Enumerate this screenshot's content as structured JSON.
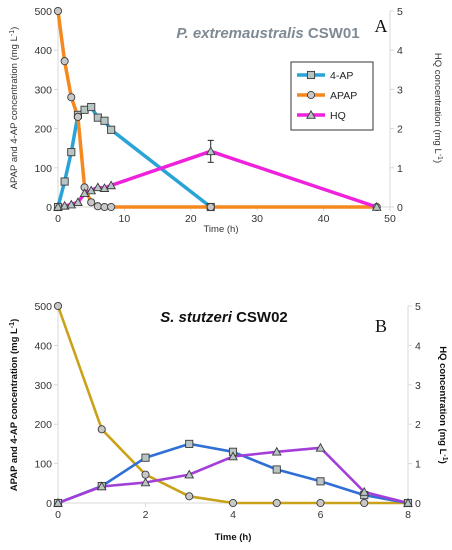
{
  "chart_data": [
    {
      "type": "line",
      "panel_label": "A",
      "title_italic": "P. extremaustralis",
      "title_rest": " CSW01",
      "xlabel": "Time (h)",
      "ylabel": "APAP and 4-AP concentration (mg L",
      "ylabel_sup": "-1",
      "ylabel_close": ")",
      "y2label": "HQ concentration (mg L",
      "y2label_sup": "-1",
      "y2label_close": ")",
      "xlim": [
        0,
        50
      ],
      "ylim": [
        0,
        500
      ],
      "y2lim": [
        0,
        5
      ],
      "xticks": [
        "0",
        "10",
        "20",
        "30",
        "40",
        "50"
      ],
      "yticks": [
        "0",
        "100",
        "200",
        "300",
        "400",
        "500"
      ],
      "y2ticks": [
        "0",
        "1",
        "2",
        "3",
        "4",
        "5"
      ],
      "legend_position": "inside-right",
      "series": [
        {
          "name": "4-AP",
          "axis": "left",
          "color": "#2aa3d6",
          "marker": "square",
          "marker_fill": "#b9c4c4",
          "points": [
            [
              0,
              0
            ],
            [
              1,
              65
            ],
            [
              2,
              140
            ],
            [
              3,
              235
            ],
            [
              4,
              248
            ],
            [
              5,
              255
            ],
            [
              6,
              228
            ],
            [
              7,
              220
            ],
            [
              8,
              197
            ],
            [
              23,
              0
            ]
          ]
        },
        {
          "name": "APAP",
          "axis": "left",
          "color": "#f5891f",
          "marker": "circle",
          "marker_fill": "#c8c8c8",
          "points": [
            [
              0,
              500
            ],
            [
              1,
              372
            ],
            [
              2,
              280
            ],
            [
              3,
              230
            ],
            [
              4,
              50
            ],
            [
              5,
              12
            ],
            [
              6,
              2
            ],
            [
              7,
              0
            ],
            [
              8,
              0
            ],
            [
              23,
              0
            ],
            [
              48,
              0
            ]
          ]
        },
        {
          "name": "HQ",
          "axis": "right",
          "color": "#ee22dd",
          "marker": "triangle",
          "marker_fill": "#b9c4c4",
          "points": [
            [
              0,
              0
            ],
            [
              1,
              0.03
            ],
            [
              2,
              0.06
            ],
            [
              3,
              0.12
            ],
            [
              4,
              0.35
            ],
            [
              5,
              0.42
            ],
            [
              6,
              0.5
            ],
            [
              7,
              0.48
            ],
            [
              8,
              0.55
            ],
            [
              23,
              1.42
            ],
            [
              48,
              0
            ]
          ],
          "error_bars": [
            {
              "x": 23,
              "y": 1.42,
              "err": 0.28
            }
          ]
        }
      ]
    },
    {
      "type": "line",
      "panel_label": "B",
      "title_italic": "S. stutzeri",
      "title_rest": " CSW02",
      "xlabel": "Time (h)",
      "ylabel": "APAP and 4-AP concentration (mg L",
      "ylabel_sup": "-1",
      "ylabel_close": ")",
      "y2label": "HQ concentration (mg L",
      "y2label_sup": "-1",
      "y2label_close": ")",
      "xlim": [
        0,
        8
      ],
      "ylim": [
        0,
        500
      ],
      "y2lim": [
        0,
        5
      ],
      "xticks": [
        "0",
        "2",
        "4",
        "6",
        "8"
      ],
      "yticks": [
        "0",
        "100",
        "200",
        "300",
        "400",
        "500"
      ],
      "y2ticks": [
        "0",
        "1",
        "2",
        "3",
        "4",
        "5"
      ],
      "series": [
        {
          "axis": "left",
          "color": "#c9a21a",
          "marker": "circle",
          "marker_fill": "#c8c8c8",
          "points": [
            [
              0,
              500
            ],
            [
              1,
              187
            ],
            [
              2,
              72
            ],
            [
              3,
              17
            ],
            [
              4,
              0
            ],
            [
              5,
              0
            ],
            [
              6,
              0
            ],
            [
              7,
              0
            ],
            [
              8,
              0
            ]
          ]
        },
        {
          "axis": "left",
          "color": "#2f6fd6",
          "marker": "square",
          "marker_fill": "#b9c4c4",
          "points": [
            [
              0,
              0
            ],
            [
              1,
              43
            ],
            [
              2,
              115
            ],
            [
              3,
              150
            ],
            [
              4,
              130
            ],
            [
              5,
              85
            ],
            [
              6,
              55
            ],
            [
              7,
              20
            ],
            [
              8,
              0
            ]
          ]
        },
        {
          "axis": "right",
          "color": "#a33fd8",
          "marker": "triangle",
          "marker_fill": "#b9c4c4",
          "points": [
            [
              0,
              0
            ],
            [
              1,
              0.42
            ],
            [
              2,
              0.52
            ],
            [
              3,
              0.72
            ],
            [
              4,
              1.18
            ],
            [
              5,
              1.3
            ],
            [
              6,
              1.4
            ],
            [
              7,
              0.28
            ],
            [
              8,
              0
            ]
          ]
        }
      ]
    }
  ]
}
